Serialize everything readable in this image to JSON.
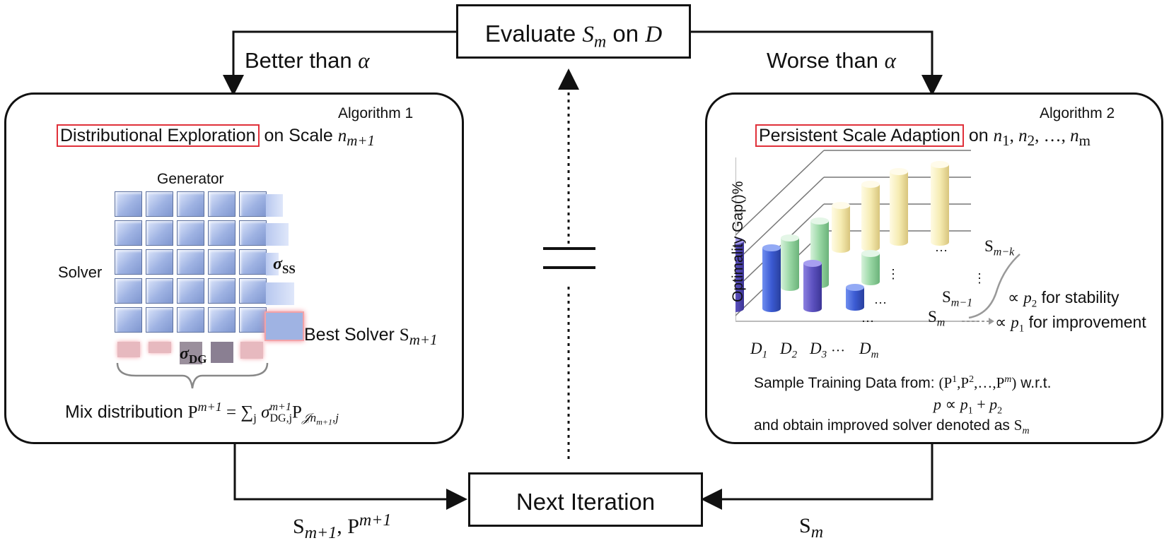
{
  "top_box": {
    "text": "Evaluate ",
    "var": "S",
    "sub": "m",
    "mid": " on ",
    "set": "D"
  },
  "bottom_box": {
    "text": "Next Iteration"
  },
  "branch_left": {
    "text": "Better than ",
    "sym": "α"
  },
  "branch_right": {
    "text": "Worse than ",
    "sym": "α"
  },
  "equal_sign": "=",
  "left_panel": {
    "algorithm": "Algorithm 1",
    "title_highlight": "Distributional Exploration",
    "title_rest": " on Scale ",
    "title_var": "n",
    "title_sub": "m+1",
    "generator_label": "Generator",
    "solver_label": "Solver",
    "sigma_ss": "σ",
    "sigma_ss_sub": "SS",
    "sigma_dg": "σ",
    "sigma_dg_sub": "DG",
    "best_solver_text": "Best Solver ",
    "best_solver_var": "S",
    "best_solver_sub": "m+1",
    "mix_text": "Mix distribution ",
    "mix_formula": "P",
    "mix_formula_sup": "m+1",
    "mix_formula_eq": " = ∑",
    "mix_formula_j": "j",
    "mix_sigma": " σ",
    "mix_sigma_sup": "m+1",
    "mix_sigma_sub": "DG,j",
    "mix_p": "P",
    "mix_p_sub": "𝒥n",
    "mix_p_subsub": "m+1",
    "mix_p_subtail": ",j"
  },
  "right_panel": {
    "algorithm": "Algorithm 2",
    "title_highlight": "Persistent Scale Adaption",
    "title_rest": " on ",
    "title_seq": "n",
    "title_seq_subs": [
      "1",
      "2",
      "m"
    ],
    "title_dots": "…",
    "y_axis": "Optimality Gap()%",
    "x_labels": [
      "D",
      "D",
      "D",
      "D"
    ],
    "x_subs": [
      "1",
      "2",
      "3",
      "m"
    ],
    "x_dots": "···",
    "series_labels": [
      {
        "var": "S",
        "sub": "m−k"
      },
      {
        "var": "S",
        "sub": "m−1"
      },
      {
        "var": "S",
        "sub": "m"
      }
    ],
    "ellipsis": "…",
    "vdots": "⋮",
    "stability_text": "∝ ",
    "stability_var": "p",
    "stability_sub": "2",
    "stability_tail": " for stability",
    "improvement_text": "∝ ",
    "improvement_var": "p",
    "improvement_sub": "1",
    "improvement_tail": " for improvement",
    "sample_line1": "Sample Training Data from: ",
    "sample_set": "(P",
    "sample_set_sups": [
      "1",
      "2",
      "m"
    ],
    "sample_set_tail": ")",
    "sample_wrt": " w.r.t.",
    "sample_line2_var": "p",
    "sample_line2_rel": " ∝ ",
    "sample_line2_p1": "p",
    "sample_line2_plus": " + ",
    "sample_line2_p2": "p",
    "sample_line3": "and obtain improved solver denoted as ",
    "sample_line3_var": "S",
    "sample_line3_sub": "m"
  },
  "edge_left": {
    "var": "S",
    "sub": "m+1",
    "sep": ", ",
    "var2": "P",
    "sup2": "m+1"
  },
  "edge_right": {
    "var": "S",
    "sub": "m"
  },
  "colors": {
    "line": "#111111",
    "highlight": "#e0303a",
    "cell": "#9fb3e3",
    "bar_purple": "#6f62c9",
    "bar_green": "#8fcf9b",
    "bar_yellow": "#f3e7a4"
  }
}
